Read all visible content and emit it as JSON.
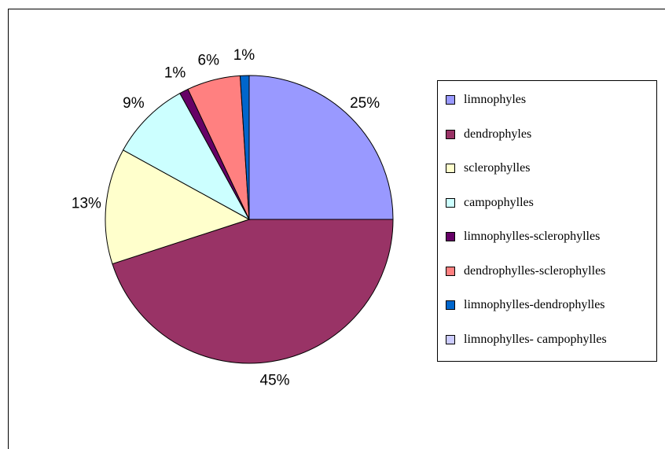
{
  "chart_data": {
    "type": "pie",
    "title": "",
    "series": [
      {
        "name": "limnophyles",
        "value": 25,
        "label": "25%",
        "color": "#9999FF"
      },
      {
        "name": "dendrophyles",
        "value": 45,
        "label": "45%",
        "color": "#993366"
      },
      {
        "name": "sclerophylles",
        "value": 13,
        "label": "13%",
        "color": "#FFFFCC"
      },
      {
        "name": "campophylles",
        "value": 9,
        "label": "9%",
        "color": "#CCFFFF"
      },
      {
        "name": "limnophylles-sclerophylles",
        "value": 1,
        "label": "1%",
        "color": "#660066"
      },
      {
        "name": "dendrophylles-sclerophylles",
        "value": 6,
        "label": "6%",
        "color": "#FF8080"
      },
      {
        "name": "limnophylles-dendrophylles",
        "value": 1,
        "label": "1%",
        "color": "#0066CC"
      },
      {
        "name": "limnophylles- campophylles",
        "value": 0,
        "label": "",
        "color": "#CCCCFF"
      }
    ],
    "legend_position": "right"
  }
}
